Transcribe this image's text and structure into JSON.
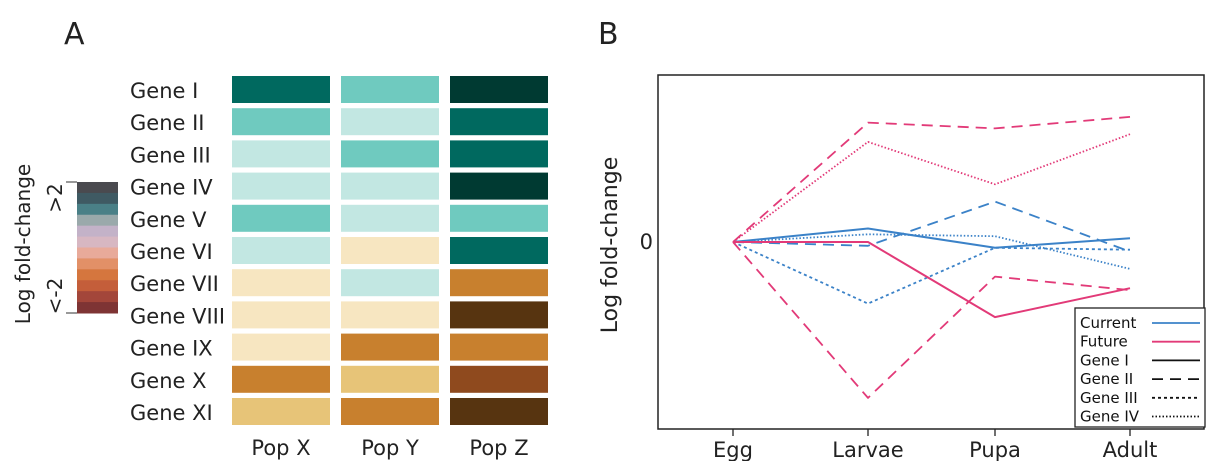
{
  "chart_data": [
    {
      "type": "heatmap",
      "panel": "A",
      "rows": [
        "Gene I",
        "Gene II",
        "Gene III",
        "Gene IV",
        "Gene V",
        "Gene VI",
        "Gene VII",
        "Gene VIII",
        "Gene IX",
        "Gene X",
        "Gene XI"
      ],
      "columns": [
        "Pop X",
        "Pop Y",
        "Pop Z"
      ],
      "cell_colors": [
        [
          "#00695f",
          "#6fcabf",
          "#003a32"
        ],
        [
          "#6fcabf",
          "#c2e7e2",
          "#00695f"
        ],
        [
          "#c2e7e2",
          "#6fcabf",
          "#00695f"
        ],
        [
          "#c2e7e2",
          "#c2e7e2",
          "#003a32"
        ],
        [
          "#6fcabf",
          "#c2e7e2",
          "#6fcabf"
        ],
        [
          "#c2e7e2",
          "#f7e6c1",
          "#00695f"
        ],
        [
          "#f7e6c1",
          "#c2e7e2",
          "#c8802e"
        ],
        [
          "#f7e6c1",
          "#f7e6c1",
          "#573410"
        ],
        [
          "#f7e6c1",
          "#c8802e",
          "#c8802e"
        ],
        [
          "#c8802e",
          "#e7c478",
          "#8f4a1e"
        ],
        [
          "#e7c478",
          "#c8802e",
          "#573410"
        ]
      ],
      "colorbar": {
        "title": "Log fold-change",
        "top_label": ">2",
        "bottom_label": "<-2",
        "colors": [
          "#4a4a4f",
          "#3f5a63",
          "#4a8087",
          "#9aa9ab",
          "#c3b2c8",
          "#d7b7c2",
          "#e8aa9a",
          "#e29067",
          "#d5763e",
          "#c45e3a",
          "#a3463a",
          "#7e3434"
        ]
      }
    },
    {
      "type": "line",
      "panel": "B",
      "categories": [
        "Egg",
        "Larvae",
        "Pupa",
        "Adult"
      ],
      "ylabel": "Log fold-change",
      "ytick_label": "0",
      "yrange": [
        -4,
        3.3
      ],
      "series": [
        {
          "name": "Gene I",
          "group": "Current",
          "color": "#3b82c8",
          "dash": "solid",
          "values": [
            0,
            0.35,
            -0.15,
            0.1
          ]
        },
        {
          "name": "Gene II",
          "group": "Current",
          "color": "#3b82c8",
          "dash": "dashed",
          "values": [
            0,
            -0.1,
            1.05,
            -0.25
          ]
        },
        {
          "name": "Gene III",
          "group": "Current",
          "color": "#3b82c8",
          "dash": "dotted",
          "values": [
            0,
            -1.6,
            -0.15,
            -0.2
          ]
        },
        {
          "name": "Gene IV",
          "group": "Current",
          "color": "#3b82c8",
          "dash": "fine",
          "values": [
            0,
            0.2,
            0.15,
            -0.7
          ]
        },
        {
          "name": "Gene I",
          "group": "Future",
          "color": "#e23a78",
          "dash": "solid",
          "values": [
            0,
            0,
            -1.95,
            -1.2
          ]
        },
        {
          "name": "Gene II",
          "group": "Future",
          "color": "#e23a78",
          "dash": "dashed",
          "values": [
            0,
            3.1,
            2.95,
            3.25
          ]
        },
        {
          "name": "Gene II",
          "group": "Future",
          "color": "#e23a78",
          "dash": "dashed",
          "values": [
            0,
            -4.05,
            -0.9,
            -1.25
          ]
        },
        {
          "name": "Gene IV",
          "group": "Future",
          "color": "#e23a78",
          "dash": "fine",
          "values": [
            0,
            2.6,
            1.5,
            2.8
          ]
        }
      ],
      "legend": {
        "position": "bottom-right",
        "entries": [
          {
            "label": "Current",
            "color": "#3b82c8",
            "dash": "solid"
          },
          {
            "label": "Future",
            "color": "#e23a78",
            "dash": "solid"
          },
          {
            "label": "Gene I",
            "color": "#111111",
            "dash": "solid"
          },
          {
            "label": "Gene II",
            "color": "#111111",
            "dash": "dashed"
          },
          {
            "label": "Gene III",
            "color": "#111111",
            "dash": "dotted"
          },
          {
            "label": "Gene IV",
            "color": "#111111",
            "dash": "fine"
          }
        ]
      }
    }
  ]
}
